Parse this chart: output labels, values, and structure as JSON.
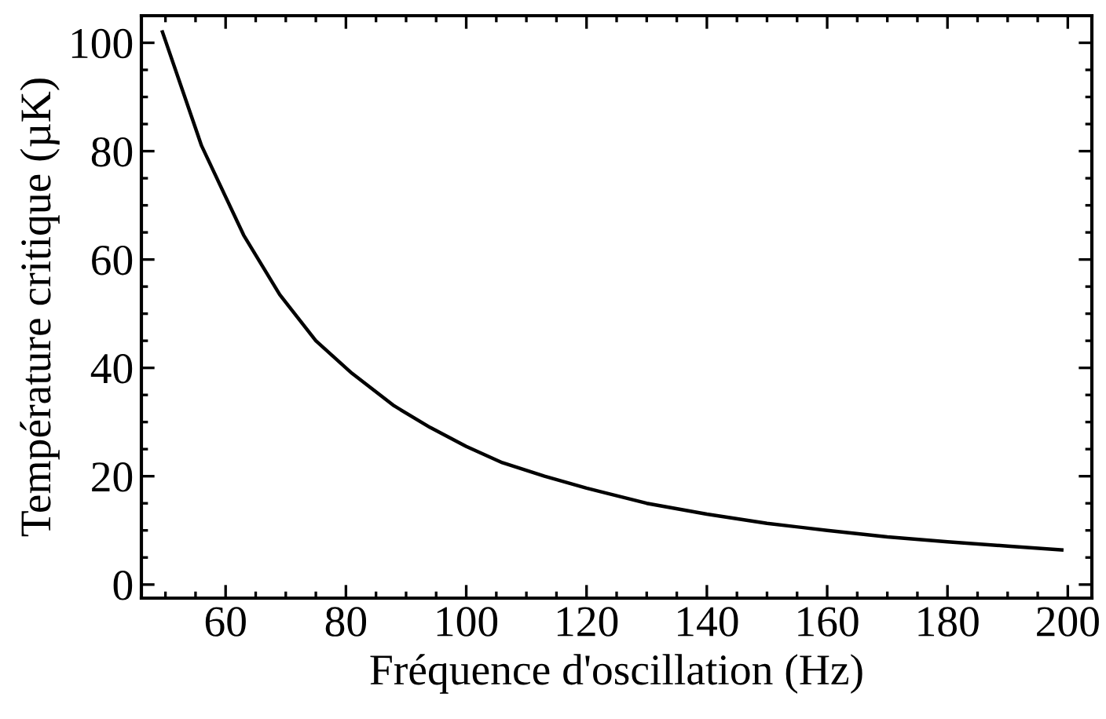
{
  "chart_data": {
    "type": "line",
    "xlabel": "Fréquence d'oscillation (Hz)",
    "ylabel": "Température critique (µK)",
    "series": [
      {
        "color": "#000000",
        "x": [
          49.5,
          56,
          63,
          69,
          75,
          81,
          88,
          94,
          100,
          106,
          113,
          120,
          130,
          140,
          150,
          160,
          170,
          180,
          190,
          199
        ],
        "values": [
          102,
          81,
          64.5,
          53.5,
          45,
          39,
          33,
          29,
          25.5,
          22.5,
          20,
          17.8,
          15,
          13,
          11.3,
          10,
          8.8,
          7.9,
          7.1,
          6.4
        ]
      }
    ],
    "xlim": [
      46,
      204
    ],
    "ylim": [
      -2.5,
      105
    ],
    "xticks": [
      60,
      80,
      100,
      120,
      140,
      160,
      180,
      200
    ],
    "yticks": [
      0,
      20,
      40,
      60,
      80,
      100
    ],
    "marker": "none",
    "line_style": "solid"
  }
}
